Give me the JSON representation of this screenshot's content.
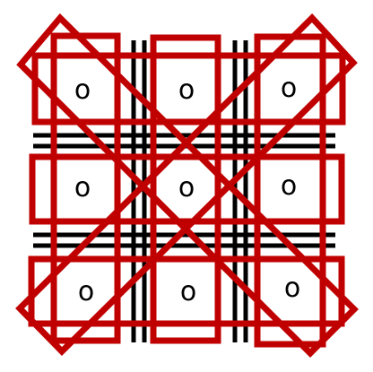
{
  "game": {
    "type": "tic-tac-toe",
    "cells": [
      [
        "o",
        "o",
        "o"
      ],
      [
        "o",
        "o",
        "o"
      ],
      [
        "o",
        "o",
        "o"
      ]
    ]
  },
  "colors": {
    "background": "#ffffff",
    "grid": "#000000",
    "overlay": "#c00000",
    "mark": "#000000"
  }
}
